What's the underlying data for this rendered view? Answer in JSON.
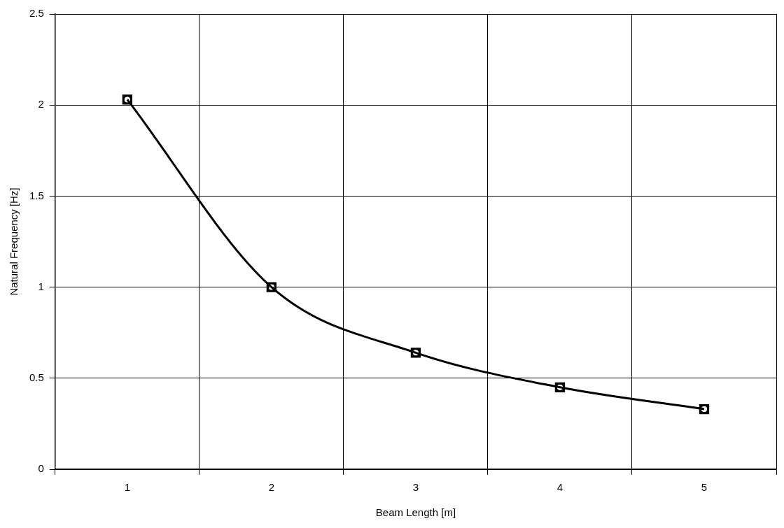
{
  "chart_data": {
    "type": "line",
    "xlabel": "Beam Length [m]",
    "ylabel": "Natural Frequency [Hz]",
    "categories": [
      "1",
      "2",
      "3",
      "4",
      "5"
    ],
    "series": [
      {
        "color": "#000000",
        "marker": "square",
        "values": [
          2.03,
          1.0,
          0.64,
          0.45,
          0.33
        ]
      },
      {
        "type": "scatter",
        "color": "#000000",
        "marker": "circle",
        "values": [
          2.03,
          1.0,
          0.64,
          0.45,
          0.33
        ]
      }
    ],
    "ylim": [
      0,
      2.5
    ],
    "yticks": [
      0,
      0.5,
      1,
      1.5,
      2,
      2.5
    ],
    "grid": true,
    "legend": false
  }
}
